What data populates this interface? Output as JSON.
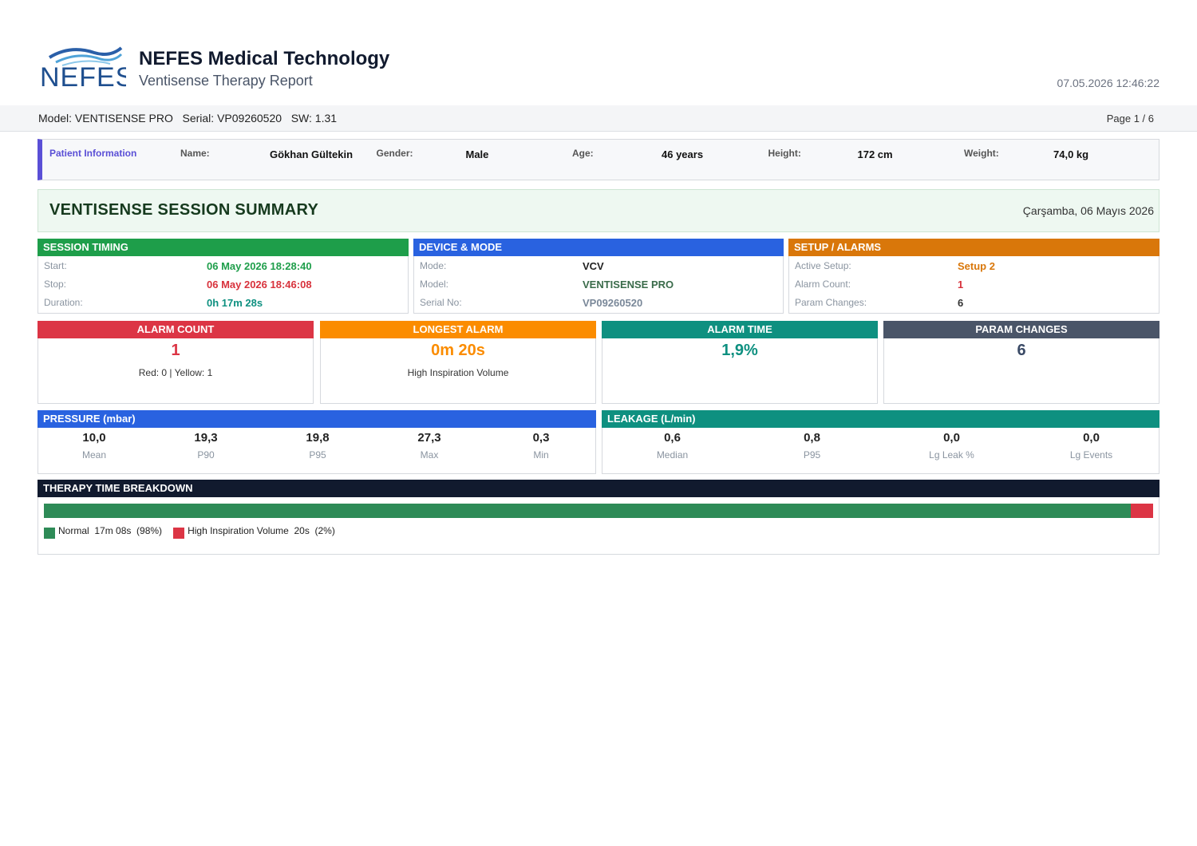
{
  "header": {
    "logo_text": "NEFES",
    "company": "NEFES Medical Technology",
    "subtitle": "Ventisense Therapy Report",
    "datetime": "07.05.2026  12:46:22"
  },
  "info_bar": {
    "model": "Model: VENTISENSE PRO",
    "serial": "Serial: VP09260520",
    "software": "SW: 1.31",
    "page": "Page 1 / 6"
  },
  "patient": {
    "title": "Patient Information",
    "fields": [
      {
        "label": "Name:",
        "value": "Gökhan Gültekin"
      },
      {
        "label": "Gender:",
        "value": "Male"
      },
      {
        "label": "Age:",
        "value": "46 years"
      },
      {
        "label": "Height:",
        "value": "172 cm"
      },
      {
        "label": "Weight:",
        "value": "74,0 kg"
      }
    ]
  },
  "summary": {
    "title": "VENTISENSE SESSION SUMMARY",
    "date": "Çarşamba, 06 Mayıs 2026"
  },
  "panels": [
    {
      "title": "SESSION TIMING",
      "rows": [
        {
          "label": "Start:",
          "value": "06 May 2026  18:28:40"
        },
        {
          "label": "Stop:",
          "value": "06 May 2026  18:46:08"
        },
        {
          "label": "Duration:",
          "value": "0h 17m 28s"
        }
      ]
    },
    {
      "title": "DEVICE & MODE",
      "rows": [
        {
          "label": "Mode:",
          "value": "VCV"
        },
        {
          "label": "Model:",
          "value": "VENTISENSE PRO"
        },
        {
          "label": "Serial No:",
          "value": "VP09260520"
        }
      ]
    },
    {
      "title": "SETUP / ALARMS",
      "rows": [
        {
          "label": "Active Setup:",
          "value": "Setup 2"
        },
        {
          "label": "Alarm Count:",
          "value": "1"
        },
        {
          "label": "Param Changes:",
          "value": "6"
        }
      ]
    }
  ],
  "cards": [
    {
      "title": "ALARM COUNT",
      "value": "1",
      "detail": "Red: 0  |  Yellow: 1"
    },
    {
      "title": "LONGEST ALARM",
      "value": "0m 20s",
      "detail": "High Inspiration Volume"
    },
    {
      "title": "ALARM TIME",
      "value": "1,9%"
    },
    {
      "title": "PARAM CHANGES",
      "value": "6"
    }
  ],
  "pressure": {
    "title": "PRESSURE  (mbar)",
    "stats": [
      {
        "value": "10,0",
        "label": "Mean"
      },
      {
        "value": "19,3",
        "label": "P90"
      },
      {
        "value": "19,8",
        "label": "P95"
      },
      {
        "value": "27,3",
        "label": "Max"
      },
      {
        "value": "0,3",
        "label": "Min"
      }
    ]
  },
  "leakage": {
    "title": "LEAKAGE  (L/min)",
    "stats": [
      {
        "value": "0,6",
        "label": "Median"
      },
      {
        "value": "0,8",
        "label": "P95"
      },
      {
        "value": "0,0",
        "label": "Lg Leak %"
      },
      {
        "value": "0,0",
        "label": "Lg Events"
      }
    ]
  },
  "therapy": {
    "title": "THERAPY TIME BREAKDOWN",
    "segments": [
      {
        "name": "Normal",
        "duration": "17m 08s",
        "value": 98,
        "value_label": "(98%)",
        "color": "#2e8b57"
      },
      {
        "name": "High Inspiration Volume",
        "duration": "20s",
        "value": 2,
        "value_label": "(2%)",
        "color": "#dc3545"
      }
    ]
  }
}
